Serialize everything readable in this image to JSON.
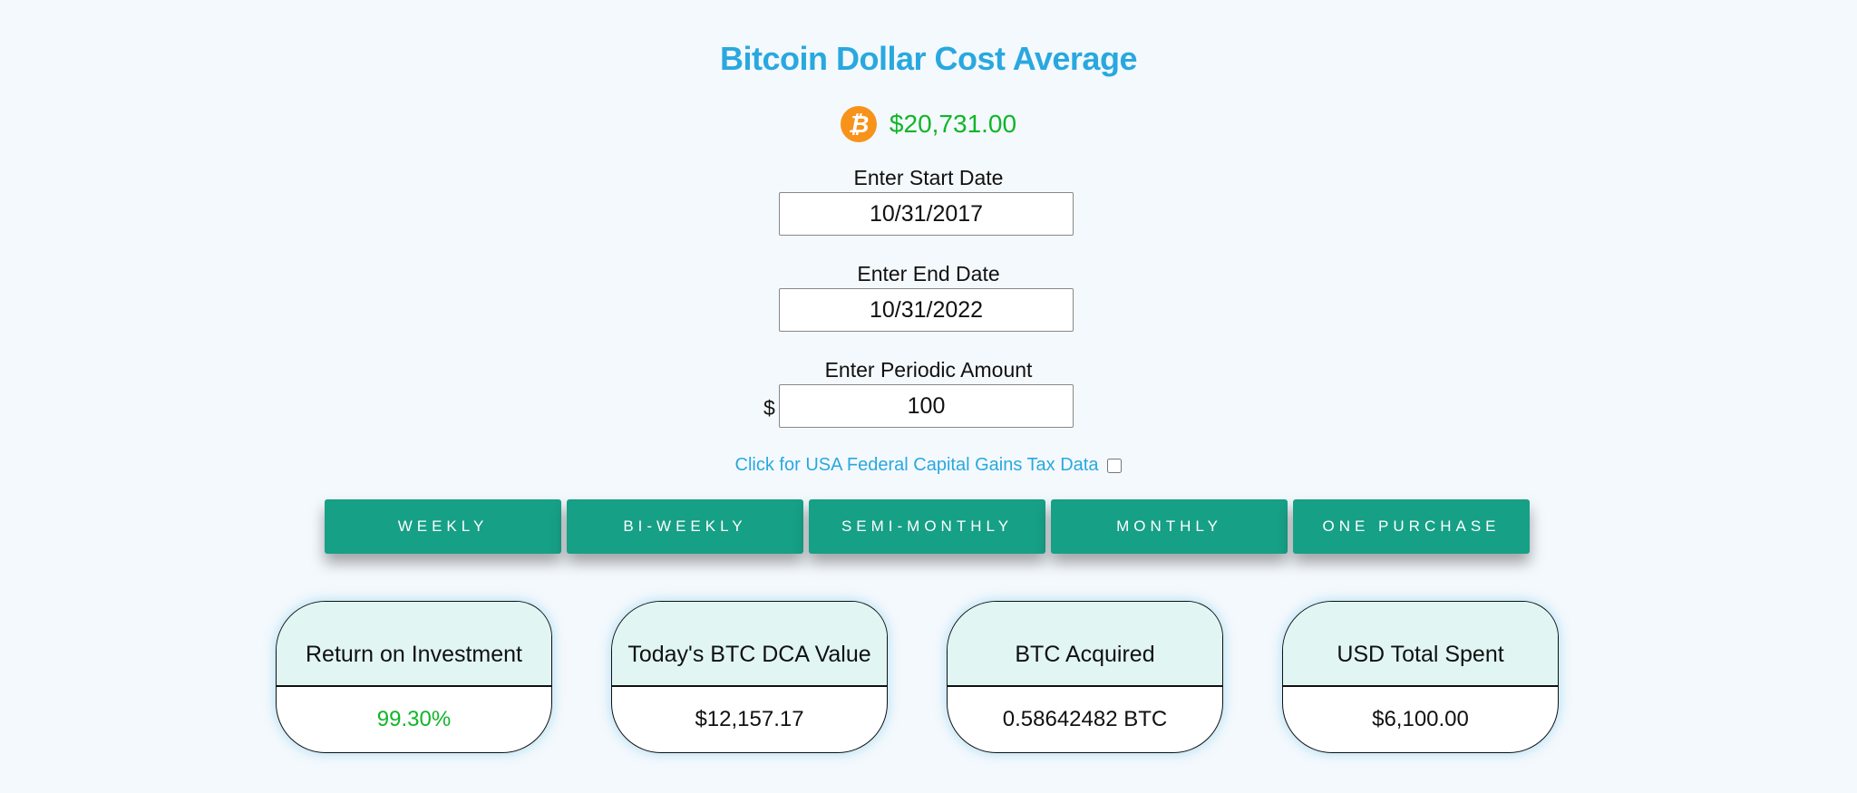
{
  "header": {
    "title": "Bitcoin Dollar Cost Average",
    "price": "$20,731.00",
    "price_icon": "bitcoin-icon"
  },
  "form": {
    "start_label": "Enter Start Date",
    "start_value": "10/31/2017",
    "end_label": "Enter End Date",
    "end_value": "10/31/2022",
    "amount_label": "Enter Periodic Amount",
    "amount_prefix": "$",
    "amount_value": "100",
    "tax_label": "Click for USA Federal Capital Gains Tax Data",
    "tax_checked": false
  },
  "buttons": [
    "WEEKLY",
    "BI-WEEKLY",
    "SEMI-MONTHLY",
    "MONTHLY",
    "ONE PURCHASE"
  ],
  "cards": [
    {
      "title": "Return on Investment",
      "value": "99.30%"
    },
    {
      "title": "Today's BTC DCA Value",
      "value": "$12,157.17"
    },
    {
      "title": "BTC Acquired",
      "value": "0.58642482 BTC"
    },
    {
      "title": "USD Total Spent",
      "value": "$6,100.00"
    }
  ],
  "colors": {
    "title": "#29a8df",
    "price": "#11b52a",
    "button": "#16a086",
    "card_head": "#e1f6f3",
    "roi": "#11b52a"
  }
}
